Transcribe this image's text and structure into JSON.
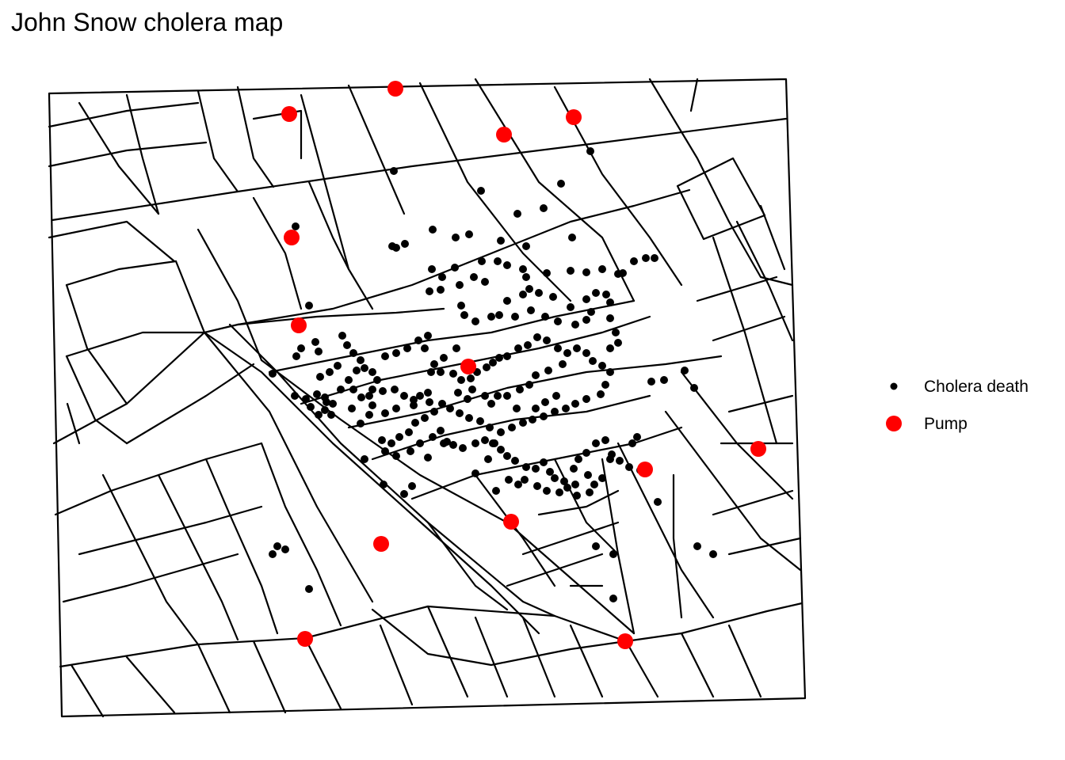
{
  "title": "John Snow cholera map",
  "legend": {
    "death_label": "Cholera death",
    "pump_label": "Pump"
  },
  "colors": {
    "streets": "#000000",
    "death": "#000000",
    "pump": "#ff0000",
    "background": "#ffffff"
  }
}
